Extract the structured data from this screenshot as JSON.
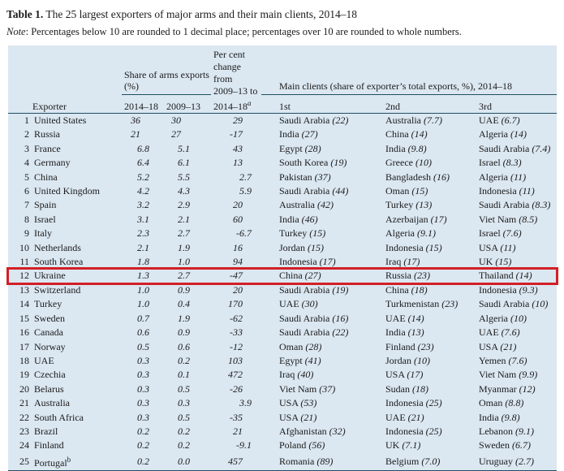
{
  "page": {
    "title_label": "Table 1.",
    "title_text": " The 25 largest exporters of major arms and their main clients, 2014–18",
    "note_label": "Note",
    "note_text": ": Percentages below 10 are rounded to 1 decimal place; percentages over 10 are rounded to whole numbers."
  },
  "colors": {
    "table_background": "#dbe7f1",
    "rule": "#1f5062",
    "highlight_box": "#d21f26",
    "text": "#1b1b1b"
  },
  "table": {
    "headers": {
      "exporter": "Exporter",
      "share_group": "Share of arms exports (%)",
      "share_cols": [
        "2014–18",
        "2009–13"
      ],
      "change_lines": [
        "Per cent",
        "change from",
        "2009–13 to",
        "2014–18"
      ],
      "change_sup": "a",
      "clients_group": "Main clients (share of exporter’s total exports, %), 2014–18",
      "client_cols": [
        "1st",
        "2nd",
        "3rd"
      ]
    },
    "rows": [
      {
        "rank": "1",
        "exporter": "United States",
        "share_2014_18": "36",
        "share_2009_13": "30",
        "percent_change": "29",
        "clients": [
          {
            "country": "Saudi Arabia",
            "share": "22"
          },
          {
            "country": "Australia",
            "share": "7.7"
          },
          {
            "country": "UAE",
            "share": "6.7"
          }
        ]
      },
      {
        "rank": "2",
        "exporter": "Russia",
        "share_2014_18": "21",
        "share_2009_13": "27",
        "percent_change": "-17",
        "clients": [
          {
            "country": "India",
            "share": "27"
          },
          {
            "country": "China",
            "share": "14"
          },
          {
            "country": "Algeria",
            "share": "14"
          }
        ]
      },
      {
        "rank": "3",
        "exporter": "France",
        "share_2014_18": "6.8",
        "share_2009_13": "5.1",
        "percent_change": "43",
        "clients": [
          {
            "country": "Egypt",
            "share": "28"
          },
          {
            "country": "India",
            "share": "9.8"
          },
          {
            "country": "Saudi Arabia",
            "share": "7.4"
          }
        ]
      },
      {
        "rank": "4",
        "exporter": "Germany",
        "share_2014_18": "6.4",
        "share_2009_13": "6.1",
        "percent_change": "13",
        "clients": [
          {
            "country": "South Korea",
            "share": "19"
          },
          {
            "country": "Greece",
            "share": "10"
          },
          {
            "country": "Israel",
            "share": "8.3"
          }
        ]
      },
      {
        "rank": "5",
        "exporter": "China",
        "share_2014_18": "5.2",
        "share_2009_13": "5.5",
        "percent_change": "2.7",
        "clients": [
          {
            "country": "Pakistan",
            "share": "37"
          },
          {
            "country": "Bangladesh",
            "share": "16"
          },
          {
            "country": "Algeria",
            "share": "11"
          }
        ]
      },
      {
        "rank": "6",
        "exporter": "United Kingdom",
        "share_2014_18": "4.2",
        "share_2009_13": "4.3",
        "percent_change": "5.9",
        "clients": [
          {
            "country": "Saudi Arabia",
            "share": "44"
          },
          {
            "country": "Oman",
            "share": "15"
          },
          {
            "country": "Indonesia",
            "share": "11"
          }
        ]
      },
      {
        "rank": "7",
        "exporter": "Spain",
        "share_2014_18": "3.2",
        "share_2009_13": "2.9",
        "percent_change": "20",
        "clients": [
          {
            "country": "Australia",
            "share": "42"
          },
          {
            "country": "Turkey",
            "share": "13"
          },
          {
            "country": "Saudi Arabia",
            "share": "8.3"
          }
        ]
      },
      {
        "rank": "8",
        "exporter": "Israel",
        "share_2014_18": "3.1",
        "share_2009_13": "2.1",
        "percent_change": "60",
        "clients": [
          {
            "country": "India",
            "share": "46"
          },
          {
            "country": "Azerbaijan",
            "share": "17"
          },
          {
            "country": "Viet Nam",
            "share": "8.5"
          }
        ]
      },
      {
        "rank": "9",
        "exporter": "Italy",
        "share_2014_18": "2.3",
        "share_2009_13": "2.7",
        "percent_change": "-6.7",
        "clients": [
          {
            "country": "Turkey",
            "share": "15"
          },
          {
            "country": "Algeria",
            "share": "9.1"
          },
          {
            "country": "Israel",
            "share": "7.6"
          }
        ]
      },
      {
        "rank": "10",
        "exporter": "Netherlands",
        "share_2014_18": "2.1",
        "share_2009_13": "1.9",
        "percent_change": "16",
        "clients": [
          {
            "country": "Jordan",
            "share": "15"
          },
          {
            "country": "Indonesia",
            "share": "15"
          },
          {
            "country": "USA",
            "share": "11"
          }
        ]
      },
      {
        "rank": "11",
        "exporter": "South Korea",
        "share_2014_18": "1.8",
        "share_2009_13": "1.0",
        "percent_change": "94",
        "clients": [
          {
            "country": "Indonesia",
            "share": "17"
          },
          {
            "country": "Iraq",
            "share": "17"
          },
          {
            "country": "UK",
            "share": "15"
          }
        ]
      },
      {
        "rank": "12",
        "exporter": "Ukraine",
        "share_2014_18": "1.3",
        "share_2009_13": "2.7",
        "percent_change": "-47",
        "highlighted": true,
        "clients": [
          {
            "country": "China",
            "share": "27"
          },
          {
            "country": "Russia",
            "share": "23"
          },
          {
            "country": "Thailand",
            "share": "14"
          }
        ]
      },
      {
        "rank": "13",
        "exporter": "Switzerland",
        "share_2014_18": "1.0",
        "share_2009_13": "0.9",
        "percent_change": "20",
        "clients": [
          {
            "country": "Saudi Arabia",
            "share": "19"
          },
          {
            "country": "China",
            "share": "18"
          },
          {
            "country": "Indonesia",
            "share": "9.3"
          }
        ]
      },
      {
        "rank": "14",
        "exporter": "Turkey",
        "share_2014_18": "1.0",
        "share_2009_13": "0.4",
        "percent_change": "170",
        "clients": [
          {
            "country": "UAE",
            "share": "30"
          },
          {
            "country": "Turkmenistan",
            "share": "23"
          },
          {
            "country": "Saudi Arabia",
            "share": "10"
          }
        ]
      },
      {
        "rank": "15",
        "exporter": "Sweden",
        "share_2014_18": "0.7",
        "share_2009_13": "1.9",
        "percent_change": "-62",
        "clients": [
          {
            "country": "Saudi Arabia",
            "share": "16"
          },
          {
            "country": "UAE",
            "share": "14"
          },
          {
            "country": "Algeria",
            "share": "10"
          }
        ]
      },
      {
        "rank": "16",
        "exporter": "Canada",
        "share_2014_18": "0.6",
        "share_2009_13": "0.9",
        "percent_change": "-33",
        "clients": [
          {
            "country": "Saudi Arabia",
            "share": "22"
          },
          {
            "country": "India",
            "share": "13"
          },
          {
            "country": "UAE",
            "share": "7.6"
          }
        ]
      },
      {
        "rank": "17",
        "exporter": "Norway",
        "share_2014_18": "0.5",
        "share_2009_13": "0.6",
        "percent_change": "-12",
        "clients": [
          {
            "country": "Oman",
            "share": "28"
          },
          {
            "country": "Finland",
            "share": "23"
          },
          {
            "country": "USA",
            "share": "21"
          }
        ]
      },
      {
        "rank": "18",
        "exporter": "UAE",
        "share_2014_18": "0.3",
        "share_2009_13": "0.2",
        "percent_change": "103",
        "clients": [
          {
            "country": "Egypt",
            "share": "41"
          },
          {
            "country": "Jordan",
            "share": "10"
          },
          {
            "country": "Yemen",
            "share": "7.6"
          }
        ]
      },
      {
        "rank": "19",
        "exporter": "Czechia",
        "share_2014_18": "0.3",
        "share_2009_13": "0.1",
        "percent_change": "472",
        "clients": [
          {
            "country": "Iraq",
            "share": "40"
          },
          {
            "country": "USA",
            "share": "17"
          },
          {
            "country": "Viet Nam",
            "share": "9.9"
          }
        ]
      },
      {
        "rank": "20",
        "exporter": "Belarus",
        "share_2014_18": "0.3",
        "share_2009_13": "0.5",
        "percent_change": "-26",
        "clients": [
          {
            "country": "Viet Nam",
            "share": "37"
          },
          {
            "country": "Sudan",
            "share": "18"
          },
          {
            "country": "Myanmar",
            "share": "12"
          }
        ]
      },
      {
        "rank": "21",
        "exporter": "Australia",
        "share_2014_18": "0.3",
        "share_2009_13": "0.3",
        "percent_change": "3.9",
        "clients": [
          {
            "country": "USA",
            "share": "53"
          },
          {
            "country": "Indonesia",
            "share": "25"
          },
          {
            "country": "Oman",
            "share": "8.8"
          }
        ]
      },
      {
        "rank": "22",
        "exporter": "South Africa",
        "share_2014_18": "0.3",
        "share_2009_13": "0.5",
        "percent_change": "-35",
        "clients": [
          {
            "country": "USA",
            "share": "21"
          },
          {
            "country": "UAE",
            "share": "21"
          },
          {
            "country": "India",
            "share": "9.8"
          }
        ]
      },
      {
        "rank": "23",
        "exporter": "Brazil",
        "share_2014_18": "0.2",
        "share_2009_13": "0.2",
        "percent_change": "21",
        "clients": [
          {
            "country": "Afghanistan",
            "share": "32"
          },
          {
            "country": "Indonesia",
            "share": "25"
          },
          {
            "country": "Lebanon",
            "share": "9.1"
          }
        ]
      },
      {
        "rank": "24",
        "exporter": "Finland",
        "share_2014_18": "0.2",
        "share_2009_13": "0.2",
        "percent_change": "-9.1",
        "clients": [
          {
            "country": "Poland",
            "share": "56"
          },
          {
            "country": "UK",
            "share": "7.1"
          },
          {
            "country": "Sweden",
            "share": "6.7"
          }
        ]
      },
      {
        "rank": "25",
        "exporter": "Portugal",
        "exporter_sup": "b",
        "share_2014_18": "0.2",
        "share_2009_13": "0.0",
        "percent_change": "457",
        "clients": [
          {
            "country": "Romania",
            "share": "89"
          },
          {
            "country": "Belgium",
            "share": "7.0"
          },
          {
            "country": "Uruguay",
            "share": "2.7"
          }
        ]
      }
    ]
  }
}
